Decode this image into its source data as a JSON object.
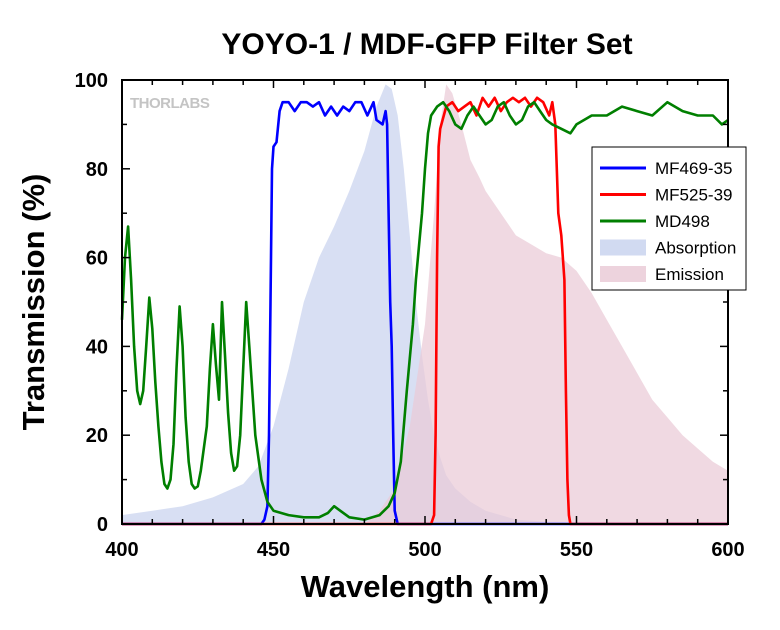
{
  "chart_data": {
    "type": "line",
    "title": "YOYO-1 / MDF-GFP Filter Set",
    "xlabel": "Wavelength (nm)",
    "ylabel": "Transmission (%)",
    "xlim": [
      400,
      600
    ],
    "ylim": [
      0,
      100
    ],
    "x_ticks": [
      400,
      450,
      500,
      550,
      600
    ],
    "y_ticks": [
      0,
      20,
      40,
      60,
      80,
      100
    ],
    "grid": false,
    "legend_position": "right",
    "watermark": "THORLABS",
    "series": [
      {
        "name": "MF469-35",
        "kind": "line",
        "color": "#0000ff",
        "points": [
          [
            400,
            0
          ],
          [
            446,
            0
          ],
          [
            447,
            1
          ],
          [
            448,
            4
          ],
          [
            448.5,
            20
          ],
          [
            449,
            50
          ],
          [
            449.5,
            80
          ],
          [
            450,
            85
          ],
          [
            451,
            86
          ],
          [
            452,
            93
          ],
          [
            453,
            95
          ],
          [
            455,
            95
          ],
          [
            457,
            93
          ],
          [
            459,
            95
          ],
          [
            461,
            95
          ],
          [
            463,
            94
          ],
          [
            465,
            95
          ],
          [
            467,
            92
          ],
          [
            469,
            94
          ],
          [
            471,
            92
          ],
          [
            473,
            94
          ],
          [
            475,
            93
          ],
          [
            477,
            95
          ],
          [
            479,
            95
          ],
          [
            481,
            92
          ],
          [
            483,
            95
          ],
          [
            484,
            91
          ],
          [
            486,
            90
          ],
          [
            487,
            93
          ],
          [
            487.5,
            90
          ],
          [
            488,
            70
          ],
          [
            488.5,
            50
          ],
          [
            489,
            40
          ],
          [
            489.5,
            20
          ],
          [
            490,
            3
          ],
          [
            491,
            0
          ],
          [
            600,
            0
          ]
        ]
      },
      {
        "name": "MF525-39",
        "kind": "line",
        "color": "#ff0000",
        "points": [
          [
            400,
            0
          ],
          [
            502,
            0
          ],
          [
            503,
            2
          ],
          [
            503.5,
            20
          ],
          [
            504,
            60
          ],
          [
            504.5,
            85
          ],
          [
            505,
            89
          ],
          [
            507,
            94
          ],
          [
            509,
            95
          ],
          [
            511,
            93
          ],
          [
            513,
            94
          ],
          [
            515,
            95
          ],
          [
            517,
            92
          ],
          [
            519,
            96
          ],
          [
            521,
            94
          ],
          [
            523,
            96
          ],
          [
            525,
            93
          ],
          [
            527,
            95
          ],
          [
            529,
            96
          ],
          [
            531,
            95
          ],
          [
            533,
            96
          ],
          [
            535,
            94
          ],
          [
            537,
            96
          ],
          [
            539,
            95
          ],
          [
            541,
            92
          ],
          [
            542,
            95
          ],
          [
            543,
            90
          ],
          [
            543.5,
            80
          ],
          [
            544,
            70
          ],
          [
            545,
            65
          ],
          [
            546,
            55
          ],
          [
            546.5,
            30
          ],
          [
            547,
            10
          ],
          [
            547.5,
            2
          ],
          [
            548,
            0
          ],
          [
            600,
            0
          ]
        ]
      },
      {
        "name": "MD498",
        "kind": "line",
        "color": "#007f00",
        "points": [
          [
            400,
            46
          ],
          [
            401,
            60
          ],
          [
            402,
            67
          ],
          [
            403,
            55
          ],
          [
            404,
            40
          ],
          [
            405,
            30
          ],
          [
            406,
            27
          ],
          [
            407,
            30
          ],
          [
            408,
            40
          ],
          [
            409,
            51
          ],
          [
            410,
            44
          ],
          [
            411,
            32
          ],
          [
            412,
            22
          ],
          [
            413,
            14
          ],
          [
            414,
            9
          ],
          [
            415,
            8
          ],
          [
            416,
            10
          ],
          [
            417,
            18
          ],
          [
            418,
            35
          ],
          [
            419,
            49
          ],
          [
            420,
            40
          ],
          [
            421,
            24
          ],
          [
            422,
            14
          ],
          [
            423,
            9
          ],
          [
            424,
            8
          ],
          [
            425,
            8.5
          ],
          [
            426,
            12
          ],
          [
            428,
            22
          ],
          [
            429,
            35
          ],
          [
            430,
            45
          ],
          [
            431,
            36
          ],
          [
            432,
            28
          ],
          [
            433,
            50
          ],
          [
            434,
            38
          ],
          [
            435,
            25
          ],
          [
            436,
            16
          ],
          [
            437,
            12
          ],
          [
            438,
            13
          ],
          [
            439,
            20
          ],
          [
            440,
            35
          ],
          [
            441,
            50
          ],
          [
            442,
            40
          ],
          [
            443,
            30
          ],
          [
            444,
            20
          ],
          [
            446,
            10
          ],
          [
            448,
            5
          ],
          [
            450,
            3
          ],
          [
            455,
            2
          ],
          [
            460,
            1.5
          ],
          [
            465,
            1.5
          ],
          [
            468,
            2.5
          ],
          [
            470,
            4
          ],
          [
            472,
            3
          ],
          [
            475,
            1.5
          ],
          [
            480,
            1
          ],
          [
            485,
            2
          ],
          [
            488,
            4
          ],
          [
            490,
            7
          ],
          [
            492,
            14
          ],
          [
            494,
            30
          ],
          [
            496,
            45
          ],
          [
            497,
            55
          ],
          [
            499,
            70
          ],
          [
            500,
            80
          ],
          [
            501,
            88
          ],
          [
            502,
            92
          ],
          [
            504,
            94
          ],
          [
            506,
            95
          ],
          [
            508,
            93
          ],
          [
            510,
            90
          ],
          [
            512,
            89
          ],
          [
            514,
            92
          ],
          [
            516,
            94
          ],
          [
            518,
            92
          ],
          [
            520,
            90
          ],
          [
            522,
            91
          ],
          [
            524,
            94
          ],
          [
            526,
            95
          ],
          [
            528,
            92
          ],
          [
            530,
            90
          ],
          [
            532,
            91
          ],
          [
            534,
            94
          ],
          [
            536,
            95
          ],
          [
            538,
            93
          ],
          [
            540,
            91
          ],
          [
            542,
            90
          ],
          [
            545,
            89
          ],
          [
            548,
            88
          ],
          [
            550,
            90
          ],
          [
            555,
            92
          ],
          [
            560,
            92
          ],
          [
            565,
            94
          ],
          [
            570,
            93
          ],
          [
            575,
            92
          ],
          [
            580,
            95
          ],
          [
            585,
            93
          ],
          [
            590,
            92
          ],
          [
            595,
            92
          ],
          [
            598,
            90
          ],
          [
            600,
            91
          ]
        ]
      },
      {
        "name": "Absorption",
        "kind": "area",
        "color": "#c9d3ee",
        "points": [
          [
            400,
            2
          ],
          [
            410,
            3
          ],
          [
            420,
            4
          ],
          [
            430,
            6
          ],
          [
            440,
            9
          ],
          [
            445,
            13
          ],
          [
            450,
            22
          ],
          [
            455,
            35
          ],
          [
            460,
            50
          ],
          [
            465,
            60
          ],
          [
            470,
            67
          ],
          [
            475,
            75
          ],
          [
            480,
            84
          ],
          [
            484,
            94
          ],
          [
            487,
            99
          ],
          [
            489,
            98
          ],
          [
            491,
            92
          ],
          [
            493,
            80
          ],
          [
            495,
            65
          ],
          [
            497,
            50
          ],
          [
            499,
            38
          ],
          [
            501,
            28
          ],
          [
            503,
            20
          ],
          [
            505,
            15
          ],
          [
            507,
            11
          ],
          [
            510,
            8
          ],
          [
            515,
            5
          ],
          [
            520,
            3
          ],
          [
            525,
            2
          ],
          [
            530,
            1
          ],
          [
            540,
            0.5
          ],
          [
            600,
            0
          ]
        ]
      },
      {
        "name": "Emission",
        "kind": "area",
        "color": "#eacbd7",
        "points": [
          [
            400,
            0
          ],
          [
            480,
            0
          ],
          [
            485,
            3
          ],
          [
            490,
            8
          ],
          [
            495,
            22
          ],
          [
            500,
            45
          ],
          [
            503,
            70
          ],
          [
            505,
            90
          ],
          [
            507,
            99
          ],
          [
            509,
            97
          ],
          [
            512,
            90
          ],
          [
            515,
            82
          ],
          [
            518,
            78
          ],
          [
            520,
            75
          ],
          [
            525,
            70
          ],
          [
            530,
            65
          ],
          [
            535,
            63
          ],
          [
            540,
            61
          ],
          [
            545,
            60
          ],
          [
            550,
            57
          ],
          [
            555,
            52
          ],
          [
            560,
            46
          ],
          [
            565,
            40
          ],
          [
            570,
            34
          ],
          [
            575,
            28
          ],
          [
            580,
            24
          ],
          [
            585,
            20
          ],
          [
            590,
            17
          ],
          [
            595,
            14
          ],
          [
            600,
            12
          ]
        ]
      }
    ]
  }
}
